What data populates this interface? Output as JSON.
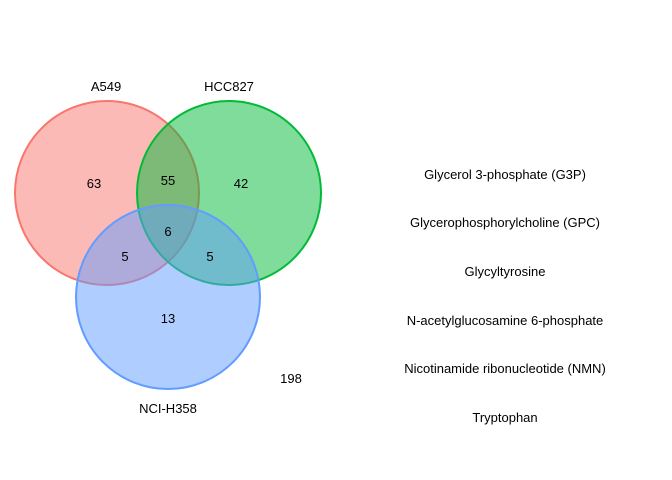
{
  "sets": [
    {
      "name": "A549",
      "color": "#F8766D"
    },
    {
      "name": "HCC827",
      "color": "#00BA38"
    },
    {
      "name": "NCI-H358",
      "color": "#619CFF"
    }
  ],
  "regions": {
    "a549_only": "63",
    "hcc827_only": "42",
    "nci_h358_only": "13",
    "a549_hcc827": "55",
    "a549_nci_h358": "5",
    "hcc827_nci_h358": "5",
    "all_three": "6",
    "outside": "198"
  },
  "metabolites": [
    "Glycerol 3-phosphate (G3P)",
    "Glycerophosphorylcholine (GPC)",
    "Glycyltyrosine",
    "N-acetylglucosamine 6-phosphate",
    "Nicotinamide ribonucleotide (NMN)",
    "Tryptophan"
  ]
}
